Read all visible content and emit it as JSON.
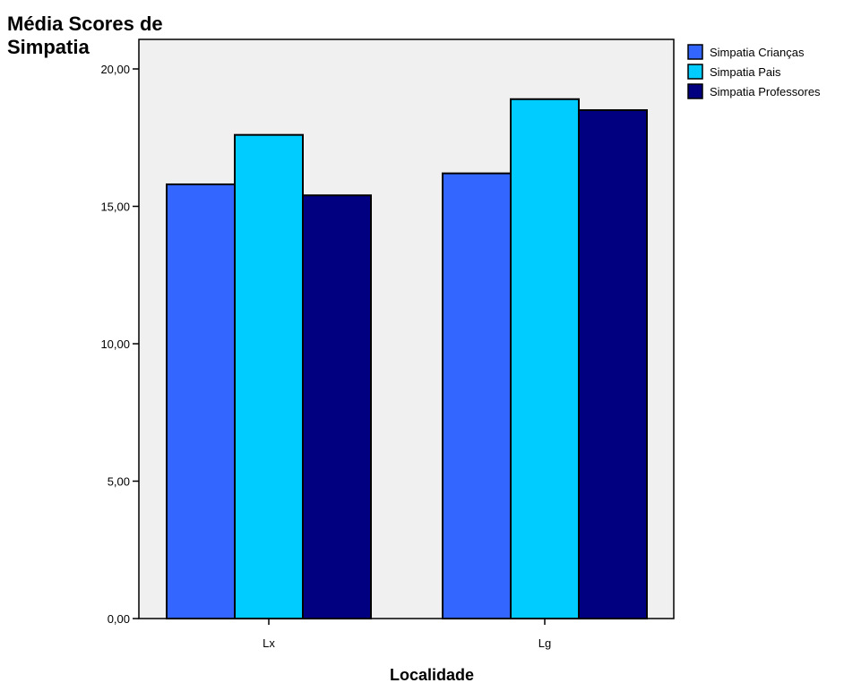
{
  "chart_data": {
    "type": "bar",
    "ylabel": "Média Scores de Simpatia",
    "ylabel_lines": [
      "Média Scores de",
      "Simpatia"
    ],
    "xlabel": "Localidade",
    "categories": [
      "Lx",
      "Lg"
    ],
    "series": [
      {
        "name": "Simpatia Crianças",
        "color": "#3366ff",
        "values": [
          15.8,
          16.2
        ]
      },
      {
        "name": "Simpatia Pais",
        "color": "#00ccff",
        "values": [
          17.6,
          18.9
        ]
      },
      {
        "name": "Simpatia Professores",
        "color": "#000080",
        "values": [
          15.4,
          18.5
        ]
      }
    ],
    "yticks": [
      "0,00",
      "5,00",
      "10,00",
      "15,00",
      "20,00"
    ],
    "ylim": [
      0,
      20
    ],
    "legend_position": "top-right",
    "plot_background": "#f0f0f0",
    "grid": false
  }
}
